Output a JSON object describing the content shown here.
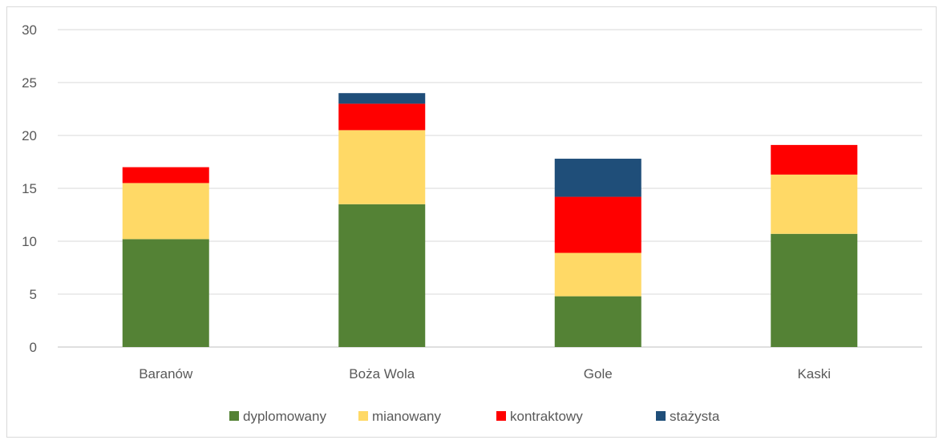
{
  "chart_data": {
    "type": "bar",
    "stacked": true,
    "categories": [
      "Baranów",
      "Boża Wola",
      "Gole",
      "Kaski"
    ],
    "series": [
      {
        "name": "dyplomowany",
        "color": "#548235",
        "values": [
          10.2,
          13.5,
          4.8,
          10.7
        ]
      },
      {
        "name": "mianowany",
        "color": "#ffd966",
        "values": [
          5.3,
          7.0,
          4.1,
          5.6
        ]
      },
      {
        "name": "kontraktowy",
        "color": "#ff0000",
        "values": [
          1.5,
          2.5,
          5.3,
          2.8
        ]
      },
      {
        "name": "stażysta",
        "color": "#1f4e79",
        "values": [
          0.0,
          1.0,
          3.6,
          0.0
        ]
      }
    ],
    "ylim": [
      0,
      30
    ],
    "yticks": [
      0,
      5,
      10,
      15,
      20,
      25,
      30
    ],
    "grid": true,
    "legend_position": "bottom",
    "title": "",
    "xlabel": "",
    "ylabel": ""
  }
}
